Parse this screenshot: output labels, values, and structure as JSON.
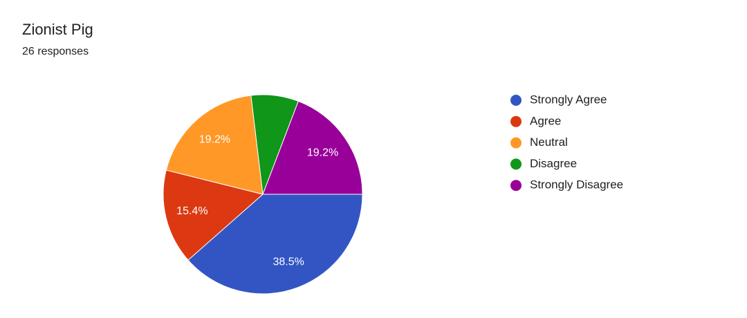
{
  "chart_data": {
    "type": "pie",
    "title": "Zionist Pig",
    "subtitle": "26 responses",
    "categories": [
      "Strongly Agree",
      "Agree",
      "Neutral",
      "Disagree",
      "Strongly Disagree"
    ],
    "values": [
      38.5,
      15.4,
      19.2,
      7.7,
      19.2
    ],
    "value_labels": [
      "38.5%",
      "15.4%",
      "19.2%",
      null,
      "19.2%"
    ],
    "colors": [
      "#3355c4",
      "#dc3912",
      "#ff9827",
      "#109618",
      "#990099"
    ],
    "legend": "right"
  }
}
